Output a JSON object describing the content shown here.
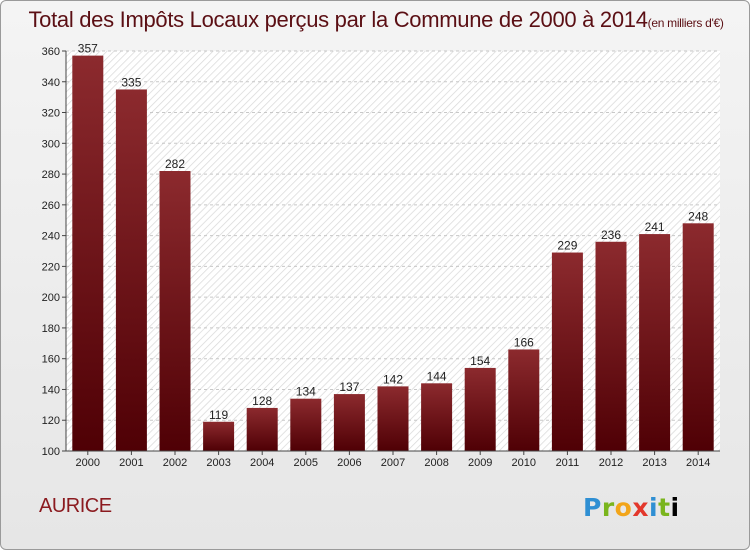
{
  "title": "Total des Impôts Locaux perçus par la Commune de 2000 à 2014",
  "unit": "(en milliers d'€)",
  "commune": "AURICE",
  "brand": "Proxiti",
  "colors": {
    "bar_top": "#8c2a2e",
    "bar_bottom": "#4f0005",
    "title": "#5b0f14"
  },
  "chart_data": {
    "type": "bar",
    "title": "Total des Impôts Locaux perçus par la Commune de 2000 à 2014",
    "categories": [
      "2000",
      "2001",
      "2002",
      "2003",
      "2004",
      "2005",
      "2006",
      "2007",
      "2008",
      "2009",
      "2010",
      "2011",
      "2012",
      "2013",
      "2014"
    ],
    "values": [
      357,
      335,
      282,
      119,
      128,
      134,
      137,
      142,
      144,
      154,
      166,
      229,
      236,
      241,
      248
    ],
    "ylim": [
      100,
      360
    ],
    "yticks": [
      100,
      120,
      140,
      160,
      180,
      200,
      220,
      240,
      260,
      280,
      300,
      320,
      340,
      360
    ],
    "grid": true
  }
}
